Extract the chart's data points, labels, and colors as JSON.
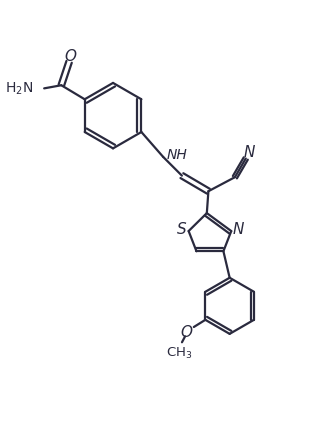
{
  "background_color": "#ffffff",
  "line_color": "#2a2a3e",
  "line_width": 1.6,
  "font_size": 10,
  "fig_width": 3.34,
  "fig_height": 4.37,
  "dpi": 100,
  "xlim": [
    0,
    10
  ],
  "ylim": [
    0,
    13
  ]
}
